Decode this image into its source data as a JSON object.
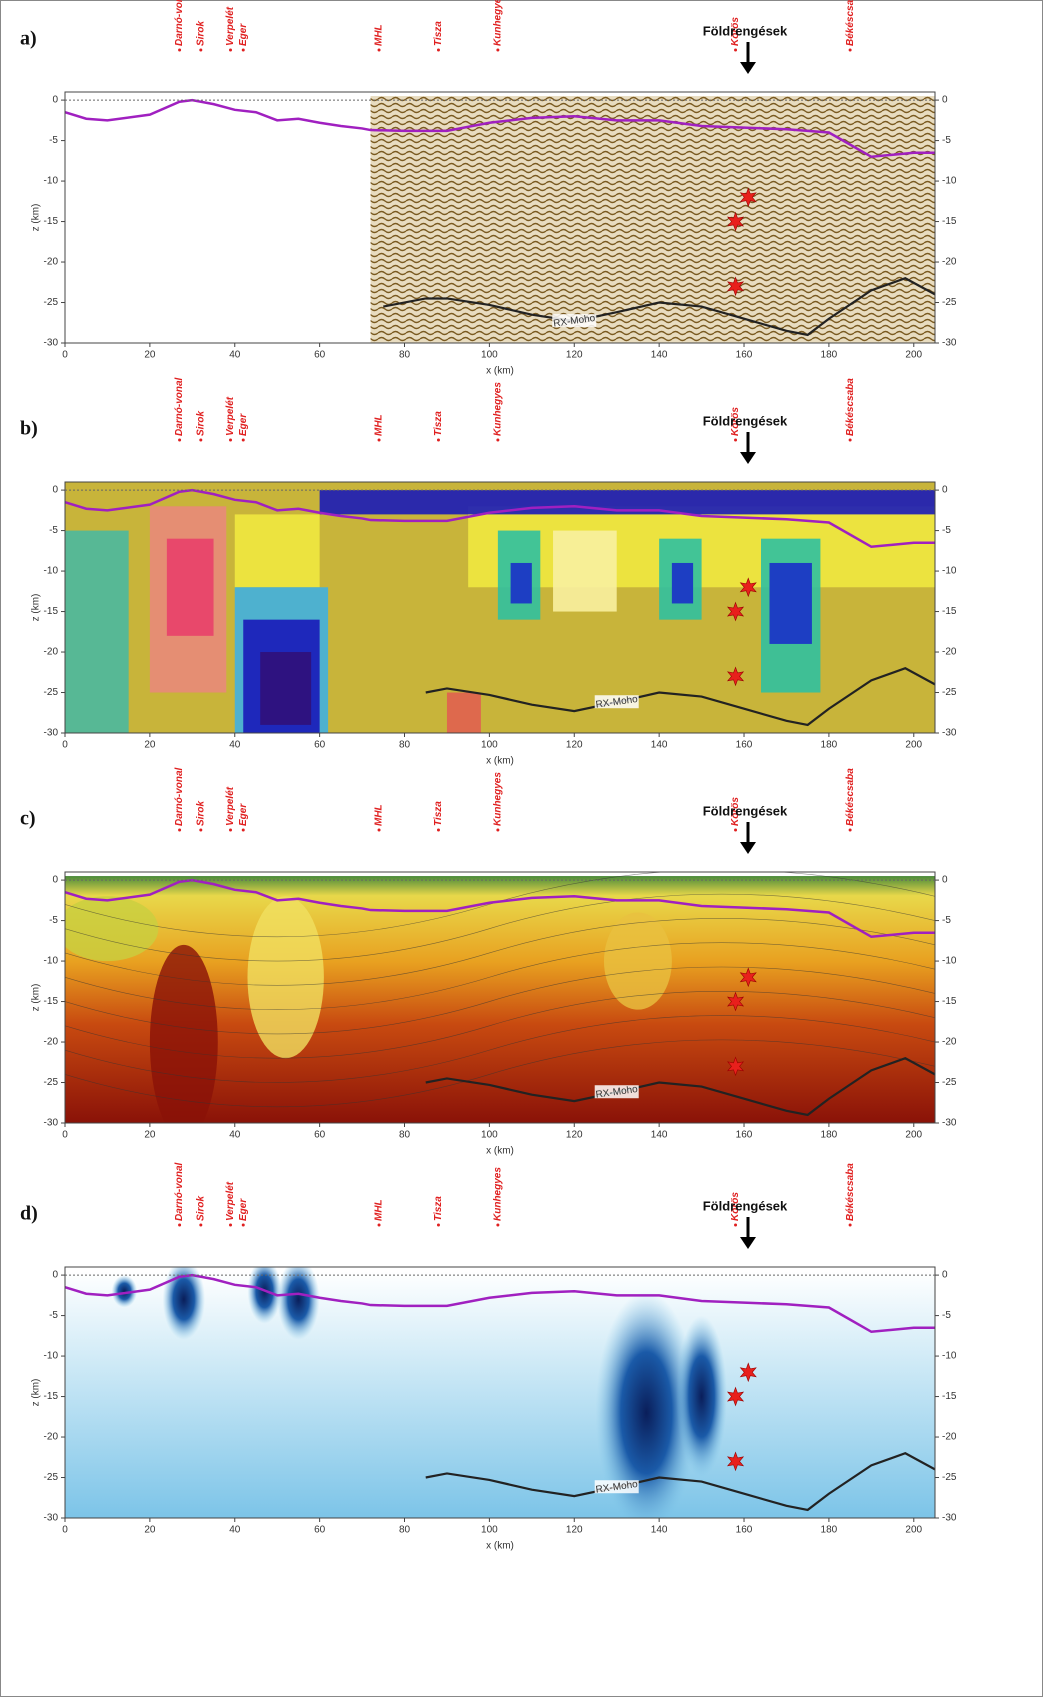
{
  "chart_data": [
    {
      "type": "line",
      "label": "a)",
      "annotation": "Földrengések",
      "xlabel": "x (km)",
      "ylabel": "z (km)",
      "xlim": [
        0,
        205
      ],
      "ylim": [
        -30,
        1
      ],
      "xticks": [
        0,
        20,
        40,
        60,
        80,
        100,
        120,
        140,
        160,
        180,
        200
      ],
      "yticks": [
        0,
        -5,
        -10,
        -15,
        -20,
        -25,
        -30
      ],
      "locations": [
        "Darnó-vonal",
        "Sirok",
        "Verpelét",
        "Eger",
        "MHL",
        "Tisza",
        "Kunhegyes",
        "Körös",
        "Békéscsaba"
      ],
      "location_x": [
        27,
        32,
        39,
        42,
        74,
        88,
        102,
        158,
        185
      ],
      "series": [
        {
          "color": "#a020c0",
          "x": [
            0,
            5,
            10,
            20,
            27,
            30,
            35,
            40,
            45,
            50,
            55,
            60,
            65,
            70,
            72,
            80,
            90,
            100,
            110,
            120,
            130,
            140,
            150,
            160,
            170,
            180,
            185,
            190,
            200,
            205
          ],
          "values": [
            -1.5,
            -2.3,
            -2.5,
            -1.8,
            -0.2,
            0,
            -0.5,
            -1.2,
            -1.5,
            -2.5,
            -2.3,
            -2.8,
            -3.2,
            -3.5,
            -3.7,
            -3.8,
            -3.8,
            -2.8,
            -2.2,
            -2,
            -2.5,
            -2.5,
            -3.2,
            -3.4,
            -3.6,
            -4,
            -5.5,
            -7,
            -6.5,
            -6.5
          ]
        },
        {
          "name": "RX-Moho",
          "color": "#222222",
          "x": [
            75,
            85,
            90,
            100,
            110,
            120,
            130,
            140,
            150,
            160,
            170,
            175,
            180,
            190,
            198,
            205
          ],
          "values": [
            -25.5,
            -24.5,
            -24.5,
            -25.3,
            -26.5,
            -27.3,
            -26.2,
            -25,
            -25.5,
            -27,
            -28.5,
            -29,
            -27,
            -23.5,
            -22,
            -24
          ]
        }
      ],
      "earthquakes": {
        "color": "#e8201c",
        "x": [
          161,
          158,
          158
        ],
        "values": [
          -12,
          -15,
          -23
        ]
      }
    },
    {
      "type": "line",
      "label": "b)",
      "annotation": "Földrengések",
      "xlabel": "x (km)",
      "ylabel": "z (km)",
      "xlim": [
        0,
        205
      ],
      "ylim": [
        -30,
        1
      ],
      "xticks": [
        0,
        20,
        40,
        60,
        80,
        100,
        120,
        140,
        160,
        180,
        200
      ],
      "yticks": [
        0,
        -5,
        -10,
        -15,
        -20,
        -25,
        -30
      ],
      "locations": [
        "Darnó-vonal",
        "Sirok",
        "Verpelét",
        "Eger",
        "MHL",
        "Tisza",
        "Kunhegyes",
        "Körös",
        "Békéscsaba"
      ],
      "location_x": [
        27,
        32,
        39,
        42,
        74,
        88,
        102,
        158,
        185
      ],
      "series": [
        {
          "color": "#a020c0",
          "x": [
            0,
            5,
            10,
            20,
            27,
            30,
            35,
            40,
            45,
            50,
            55,
            60,
            65,
            70,
            72,
            80,
            90,
            100,
            110,
            120,
            130,
            140,
            150,
            160,
            170,
            180,
            185,
            190,
            200,
            205
          ],
          "values": [
            -1.5,
            -2.3,
            -2.5,
            -1.8,
            -0.2,
            0,
            -0.5,
            -1.2,
            -1.5,
            -2.5,
            -2.3,
            -2.8,
            -3.2,
            -3.5,
            -3.7,
            -3.8,
            -3.8,
            -2.8,
            -2.2,
            -2,
            -2.5,
            -2.5,
            -3.2,
            -3.4,
            -3.6,
            -4,
            -5.5,
            -7,
            -6.5,
            -6.5
          ]
        },
        {
          "name": "RX-Moho",
          "color": "#222222",
          "x": [
            85,
            90,
            100,
            110,
            120,
            130,
            140,
            150,
            160,
            170,
            175,
            180,
            190,
            198,
            205
          ],
          "values": [
            -25,
            -24.5,
            -25.3,
            -26.5,
            -27.3,
            -26.2,
            -25,
            -25.5,
            -27,
            -28.5,
            -29,
            -27,
            -23.5,
            -22,
            -24
          ]
        }
      ],
      "earthquakes": {
        "color": "#e8201c",
        "x": [
          161,
          158,
          158
        ],
        "values": [
          -12,
          -15,
          -23
        ]
      }
    },
    {
      "type": "line",
      "label": "c)",
      "annotation": "Földrengések",
      "xlabel": "x (km)",
      "ylabel": "z (km)",
      "xlim": [
        0,
        205
      ],
      "ylim": [
        -30,
        1
      ],
      "xticks": [
        0,
        20,
        40,
        60,
        80,
        100,
        120,
        140,
        160,
        180,
        200
      ],
      "yticks": [
        0,
        -5,
        -10,
        -15,
        -20,
        -25,
        -30
      ],
      "locations": [
        "Darnó-vonal",
        "Sirok",
        "Verpelét",
        "Eger",
        "MHL",
        "Tisza",
        "Kunhegyes",
        "Körös",
        "Békéscsaba"
      ],
      "location_x": [
        27,
        32,
        39,
        42,
        74,
        88,
        102,
        158,
        185
      ],
      "series": [
        {
          "color": "#a020c0",
          "x": [
            0,
            5,
            10,
            20,
            27,
            30,
            35,
            40,
            45,
            50,
            55,
            60,
            65,
            70,
            72,
            80,
            90,
            100,
            110,
            120,
            130,
            140,
            150,
            160,
            170,
            180,
            185,
            190,
            200,
            205
          ],
          "values": [
            -1.5,
            -2.3,
            -2.5,
            -1.8,
            -0.2,
            0,
            -0.5,
            -1.2,
            -1.5,
            -2.5,
            -2.3,
            -2.8,
            -3.2,
            -3.5,
            -3.7,
            -3.8,
            -3.8,
            -2.8,
            -2.2,
            -2,
            -2.5,
            -2.5,
            -3.2,
            -3.4,
            -3.6,
            -4,
            -5.5,
            -7,
            -6.5,
            -6.5
          ]
        },
        {
          "name": "RX-Moho",
          "color": "#222222",
          "x": [
            85,
            90,
            100,
            110,
            120,
            130,
            140,
            150,
            160,
            170,
            175,
            180,
            190,
            198,
            205
          ],
          "values": [
            -25,
            -24.5,
            -25.3,
            -26.5,
            -27.3,
            -26.2,
            -25,
            -25.5,
            -27,
            -28.5,
            -29,
            -27,
            -23.5,
            -22,
            -24
          ]
        }
      ],
      "earthquakes": {
        "color": "#e8201c",
        "x": [
          161,
          158,
          158
        ],
        "values": [
          -12,
          -15,
          -23
        ]
      }
    },
    {
      "type": "line",
      "label": "d)",
      "annotation": "Földrengések",
      "xlabel": "x (km)",
      "ylabel": "z (km)",
      "xlim": [
        0,
        205
      ],
      "ylim": [
        -30,
        1
      ],
      "xticks": [
        0,
        20,
        40,
        60,
        80,
        100,
        120,
        140,
        160,
        180,
        200
      ],
      "yticks": [
        0,
        -5,
        -10,
        -15,
        -20,
        -25,
        -30
      ],
      "locations": [
        "Darnó-vonal",
        "Sirok",
        "Verpelét",
        "Eger",
        "MHL",
        "Tisza",
        "Kunhegyes",
        "Körös",
        "Békéscsaba"
      ],
      "location_x": [
        27,
        32,
        39,
        42,
        74,
        88,
        102,
        158,
        185
      ],
      "series": [
        {
          "color": "#a020c0",
          "x": [
            0,
            5,
            10,
            20,
            27,
            30,
            35,
            40,
            45,
            50,
            55,
            60,
            65,
            70,
            72,
            80,
            90,
            100,
            110,
            120,
            130,
            140,
            150,
            160,
            170,
            180,
            185,
            190,
            200,
            205
          ],
          "values": [
            -1.5,
            -2.3,
            -2.5,
            -1.8,
            -0.2,
            0,
            -0.5,
            -1.2,
            -1.5,
            -2.5,
            -2.3,
            -2.8,
            -3.2,
            -3.5,
            -3.7,
            -3.8,
            -3.8,
            -2.8,
            -2.2,
            -2,
            -2.5,
            -2.5,
            -3.2,
            -3.4,
            -3.6,
            -4,
            -5.5,
            -7,
            -6.5,
            -6.5
          ]
        },
        {
          "name": "RX-Moho",
          "color": "#222222",
          "x": [
            85,
            90,
            100,
            110,
            120,
            130,
            140,
            150,
            160,
            170,
            175,
            180,
            190,
            198,
            205
          ],
          "values": [
            -25,
            -24.5,
            -25.3,
            -26.5,
            -27.3,
            -26.2,
            -25,
            -25.5,
            -27,
            -28.5,
            -29,
            -27,
            -23.5,
            -22,
            -24
          ]
        }
      ],
      "earthquakes": {
        "color": "#e8201c",
        "x": [
          161,
          158,
          158
        ],
        "values": [
          -12,
          -15,
          -23
        ]
      }
    }
  ]
}
